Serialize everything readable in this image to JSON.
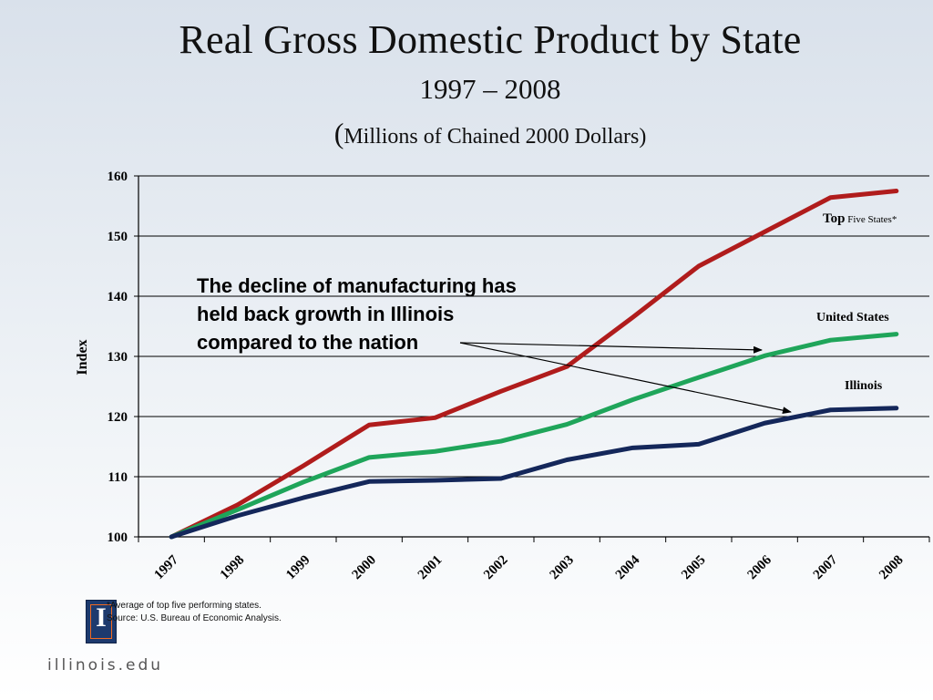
{
  "title": "Real Gross Domestic Product by State",
  "subtitle": "1997 – 2008",
  "units_open": "(",
  "units_text": "Millions of Chained 2000 Dollars)",
  "annotation": {
    "line1": "The decline of manufacturing has",
    "line2": "held back growth in Illinois",
    "line3": "compared to the nation"
  },
  "footnotes": {
    "note1": "*Average of top five performing states.",
    "note2": "Source: U.S. Bureau of Economic Analysis."
  },
  "logo_letter": "I",
  "site": "illinois.edu",
  "chart_data": {
    "type": "line",
    "ylabel": "Index",
    "xlabel": "",
    "ylim": [
      100,
      160
    ],
    "yticks": [
      100,
      110,
      120,
      130,
      140,
      150,
      160
    ],
    "grid": true,
    "categories": [
      "1997",
      "1998",
      "1999",
      "2000",
      "2001",
      "2002",
      "2003",
      "2004",
      "2005",
      "2006",
      "2007",
      "2008"
    ],
    "series": [
      {
        "label_main": "Top",
        "label_small": "Five States*",
        "color": "#b01c1c",
        "values": [
          100,
          105.3,
          111.8,
          118.6,
          119.8,
          124.2,
          128.3,
          136.5,
          145.0,
          150.7,
          156.4,
          157.5
        ]
      },
      {
        "label_main": "United States",
        "label_small": "",
        "color": "#1fa55a",
        "values": [
          100,
          104.5,
          109.1,
          113.2,
          114.2,
          115.9,
          118.7,
          122.8,
          126.5,
          130.1,
          132.7,
          133.7
        ]
      },
      {
        "label_main": "Illinois",
        "label_small": "",
        "color": "#14275a",
        "values": [
          100,
          103.5,
          106.5,
          109.2,
          109.4,
          109.7,
          112.8,
          114.8,
          115.4,
          118.9,
          121.1,
          121.4
        ]
      }
    ]
  }
}
